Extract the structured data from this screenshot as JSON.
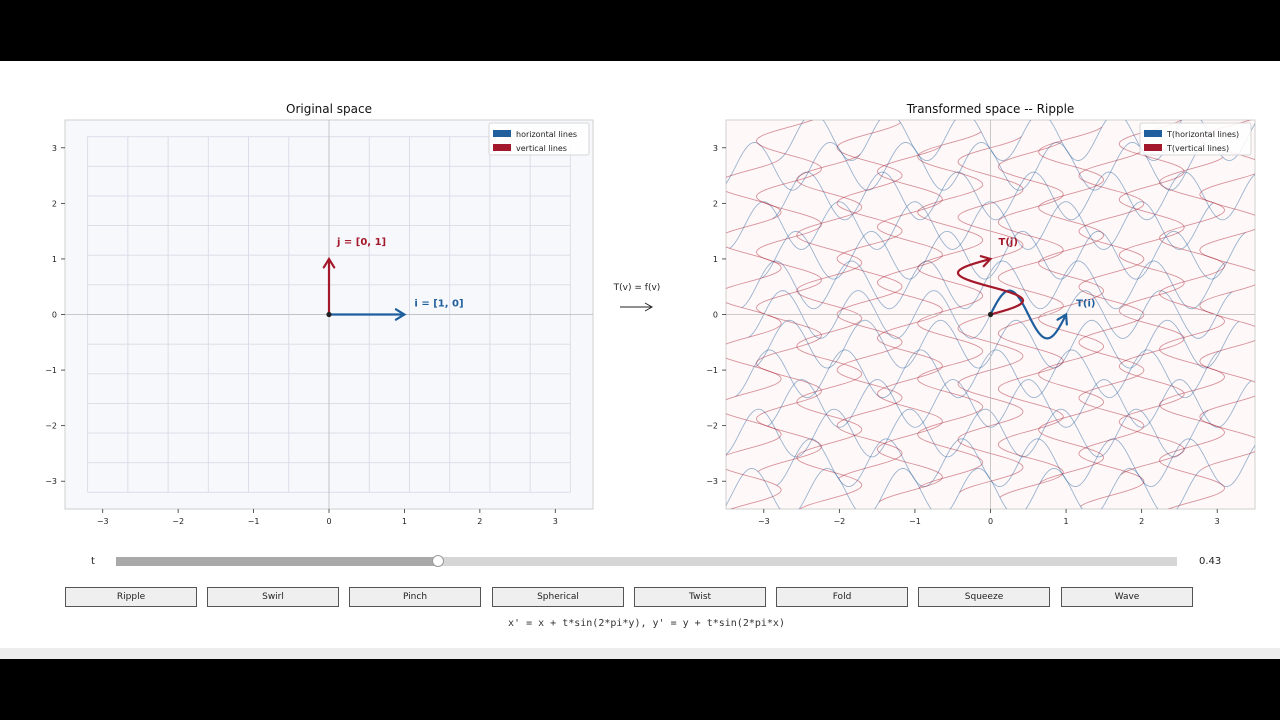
{
  "panels": {
    "left_title": "Original space",
    "right_title": "Transformed space  --  Ripple",
    "arrow_label": "T(v) = f(v)"
  },
  "controls": {
    "t_label": "t",
    "t_value": "0.43",
    "t": 0.43,
    "buttons": [
      "Ripple",
      "Swirl",
      "Pinch",
      "Spherical",
      "Twist",
      "Fold",
      "Squeeze",
      "Wave"
    ],
    "formula": "x' = x + t*sin(2*pi*y),   y' = y + t*sin(2*pi*x)"
  },
  "colors": {
    "horizontal": "#1f5f9e",
    "vertical": "#a3192b",
    "left_bg": "#f7f8fc",
    "right_bg": "#fff8f8",
    "grid_line": "#d8dbe6"
  },
  "chart_data": [
    {
      "type": "line",
      "title": "Original space",
      "xlim": [
        -3.5,
        3.5
      ],
      "ylim": [
        -3.5,
        3.5
      ],
      "ticks": [
        -3,
        -2,
        -1,
        0,
        1,
        2,
        3
      ],
      "tick_labels": [
        "−3",
        "−2",
        "−1",
        "0",
        "1",
        "2",
        "3"
      ],
      "grid_range": [
        -3.2,
        3.2
      ],
      "grid_lines": 13,
      "legend": {
        "placement": "top-right",
        "entries": [
          "horizontal lines",
          "vertical lines"
        ]
      },
      "vectors": [
        {
          "label": "i = [1, 0]",
          "from": [
            0,
            0
          ],
          "to": [
            1,
            0
          ],
          "series": "horizontal"
        },
        {
          "label": "j = [0, 1]",
          "from": [
            0,
            0
          ],
          "to": [
            0,
            1
          ],
          "series": "vertical"
        }
      ]
    },
    {
      "type": "line",
      "title": "Transformed space  --  Ripple",
      "xlim": [
        -3.5,
        3.5
      ],
      "ylim": [
        -3.5,
        3.5
      ],
      "ticks": [
        -3,
        -2,
        -1,
        0,
        1,
        2,
        3
      ],
      "tick_labels": [
        "−3",
        "−2",
        "−1",
        "0",
        "1",
        "2",
        "3"
      ],
      "t": 0.43,
      "grid_range": [
        -3.2,
        3.2
      ],
      "grid_lines": 13,
      "legend": {
        "placement": "top-right",
        "entries": [
          "T(horizontal lines)",
          "T(vertical lines)"
        ]
      },
      "vectors": [
        {
          "label": "T(i)",
          "from": [
            0,
            0
          ],
          "to": [
            1,
            0
          ],
          "series": "horizontal"
        },
        {
          "label": "T(j)",
          "from": [
            0,
            0
          ],
          "to": [
            0,
            1
          ],
          "series": "vertical"
        }
      ]
    }
  ]
}
